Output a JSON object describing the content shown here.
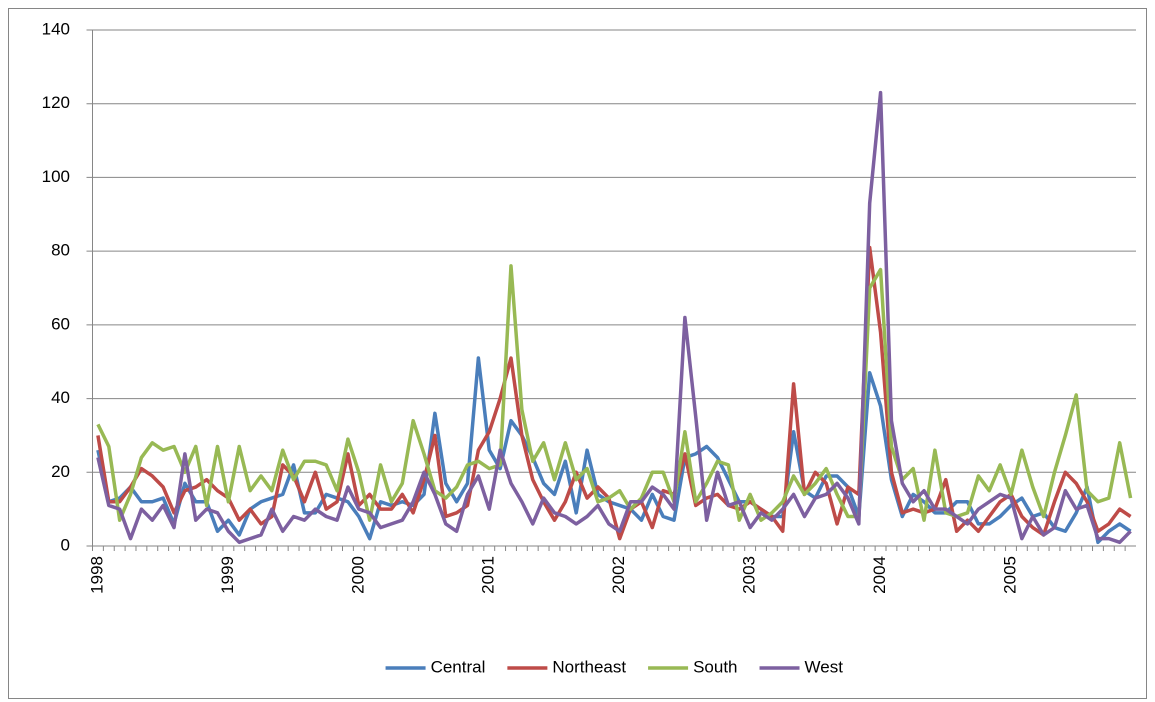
{
  "chart_data": {
    "type": "line",
    "categories": [
      "1998",
      null,
      null,
      null,
      null,
      null,
      null,
      null,
      null,
      null,
      null,
      null,
      "1999",
      null,
      null,
      null,
      null,
      null,
      null,
      null,
      null,
      null,
      null,
      null,
      "2000",
      null,
      null,
      null,
      null,
      null,
      null,
      null,
      null,
      null,
      null,
      null,
      "2001",
      null,
      null,
      null,
      null,
      null,
      null,
      null,
      null,
      null,
      null,
      null,
      "2002",
      null,
      null,
      null,
      null,
      null,
      null,
      null,
      null,
      null,
      null,
      null,
      "2003",
      null,
      null,
      null,
      null,
      null,
      null,
      null,
      null,
      null,
      null,
      null,
      "2004",
      null,
      null,
      null,
      null,
      null,
      null,
      null,
      null,
      null,
      null,
      null,
      "2005",
      null,
      null,
      null,
      null,
      null,
      null,
      null,
      null,
      null,
      null,
      null
    ],
    "series": [
      {
        "name": "Central",
        "color": "#4a7ebb",
        "values": [
          26,
          12,
          13,
          16,
          12,
          12,
          13,
          6,
          17,
          12,
          12,
          4,
          7,
          3,
          10,
          12,
          13,
          14,
          22,
          9,
          9,
          14,
          13,
          12,
          8,
          2,
          12,
          11,
          12,
          11,
          14,
          36,
          17,
          12,
          17,
          51,
          26,
          21,
          34,
          30,
          24,
          17,
          14,
          23,
          9,
          26,
          14,
          12,
          11,
          10,
          7,
          14,
          8,
          7,
          24,
          25,
          27,
          24,
          18,
          12,
          12,
          10,
          8,
          8,
          31,
          15,
          13,
          19,
          19,
          16,
          8,
          47,
          38,
          18,
          8,
          14,
          12,
          9,
          9,
          12,
          12,
          6,
          6,
          8,
          11,
          13,
          8,
          9,
          5,
          4,
          9,
          16,
          1,
          4,
          6,
          4
        ]
      },
      {
        "name": "Northeast",
        "color": "#be4b48",
        "values": [
          30,
          12,
          12,
          16,
          21,
          19,
          16,
          9,
          15,
          16,
          18,
          15,
          13,
          7,
          10,
          6,
          8,
          22,
          19,
          12,
          20,
          10,
          12,
          25,
          11,
          14,
          10,
          10,
          14,
          9,
          18,
          30,
          8,
          9,
          11,
          26,
          31,
          40,
          51,
          30,
          18,
          12,
          7,
          12,
          20,
          13,
          16,
          13,
          2,
          10,
          12,
          5,
          15,
          14,
          25,
          11,
          13,
          14,
          11,
          10,
          12,
          10,
          8,
          4,
          44,
          14,
          20,
          17,
          6,
          16,
          14,
          81,
          58,
          20,
          9,
          10,
          9,
          10,
          18,
          4,
          7,
          4,
          8,
          12,
          14,
          8,
          5,
          3,
          12,
          20,
          17,
          12,
          4,
          6,
          10,
          8
        ]
      },
      {
        "name": "South",
        "color": "#98b954",
        "values": [
          33,
          27,
          7,
          14,
          24,
          28,
          26,
          27,
          20,
          27,
          11,
          27,
          12,
          27,
          15,
          19,
          15,
          26,
          18,
          23,
          23,
          22,
          15,
          29,
          20,
          7,
          22,
          12,
          17,
          34,
          25,
          15,
          13,
          16,
          22,
          23,
          21,
          22,
          76,
          37,
          23,
          28,
          18,
          28,
          18,
          21,
          12,
          13,
          15,
          10,
          13,
          20,
          20,
          12,
          31,
          12,
          17,
          23,
          22,
          7,
          14,
          7,
          9,
          12,
          19,
          14,
          17,
          21,
          14,
          8,
          8,
          70,
          75,
          27,
          18,
          21,
          7,
          26,
          9,
          8,
          9,
          19,
          15,
          22,
          14,
          26,
          16,
          8,
          20,
          30,
          41,
          15,
          12,
          13,
          28,
          13
        ]
      },
      {
        "name": "West",
        "color": "#7d60a0",
        "values": [
          24,
          11,
          10,
          2,
          10,
          7,
          11,
          5,
          25,
          7,
          10,
          9,
          4,
          1,
          2,
          3,
          10,
          4,
          8,
          7,
          10,
          8,
          7,
          16,
          10,
          9,
          5,
          6,
          7,
          12,
          20,
          14,
          6,
          4,
          14,
          19,
          10,
          26,
          17,
          12,
          6,
          13,
          9,
          8,
          6,
          8,
          11,
          6,
          4,
          12,
          12,
          16,
          14,
          10,
          62,
          35,
          7,
          20,
          11,
          12,
          5,
          9,
          7,
          10,
          14,
          8,
          13,
          14,
          17,
          13,
          6,
          93,
          123,
          34,
          17,
          12,
          15,
          10,
          10,
          8,
          6,
          10,
          12,
          14,
          13,
          2,
          8,
          3,
          5,
          15,
          10,
          11,
          2,
          2,
          1,
          4
        ]
      }
    ],
    "ylim": [
      0,
      140
    ],
    "yticks": [
      0,
      20,
      40,
      60,
      80,
      100,
      120,
      140
    ],
    "grid": true,
    "legend": "bottom"
  }
}
